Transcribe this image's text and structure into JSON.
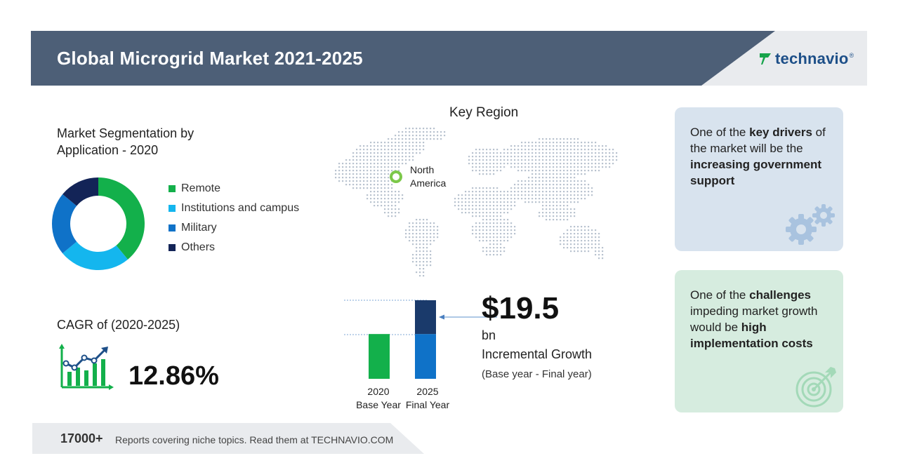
{
  "header": {
    "title": "Global Microgrid Market 2021-2025",
    "logo_text": "technavio",
    "logo_tm": "®",
    "band_color": "#4d5f77"
  },
  "segmentation": {
    "title_line1": "Market Segmentation by",
    "title_line2": "Application - 2020",
    "legend": [
      {
        "label": "Remote",
        "color": "#13b04b"
      },
      {
        "label": "Institutions and campus",
        "color": "#14b6ee"
      },
      {
        "label": "Military",
        "color": "#0f72c8"
      },
      {
        "label": "Others",
        "color": "#132457"
      }
    ],
    "shares": [
      0.39,
      0.25,
      0.22,
      0.14
    ]
  },
  "cagr": {
    "label": "CAGR of (2020-2025)",
    "value": "12.86%",
    "icon": "chart-growth-icon"
  },
  "region": {
    "title": "Key Region",
    "label_line1": "North",
    "label_line2": "America",
    "marker_color": "#7cc84a"
  },
  "growth": {
    "value": "$19.5",
    "unit": "bn",
    "label": "Incremental Growth",
    "note": "(Base year - Final year)",
    "bars": {
      "base_fraction": 0.57,
      "base_color": "#13b04b",
      "final_base_color": "#0f72c8",
      "final_increment_color": "#1a3a6b"
    },
    "years": [
      {
        "year": "2020",
        "label": "Base Year"
      },
      {
        "year": "2025",
        "label": "Final Year"
      }
    ]
  },
  "cards": {
    "drivers": {
      "pre": "One of the ",
      "bold1": "key drivers",
      "mid": " of the market will be the ",
      "bold2": "increasing government support",
      "icon": "gears-icon"
    },
    "challenges": {
      "pre": "One of the ",
      "bold1": "challenges",
      "mid": " impeding market growth would be ",
      "bold2": "high implementation costs",
      "icon": "target-icon"
    }
  },
  "footer": {
    "count": "17000+",
    "text": "Reports covering niche topics. Read them at TECHNAVIO.COM"
  }
}
